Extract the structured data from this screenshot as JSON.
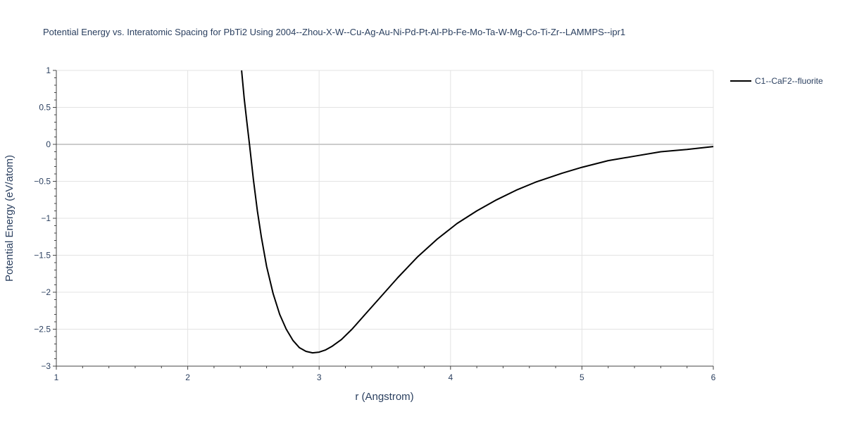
{
  "chart_data": {
    "type": "line",
    "title": "Potential Energy vs. Interatomic Spacing for PbTi2 Using 2004--Zhou-X-W--Cu-Ag-Au-Ni-Pd-Pt-Al-Pb-Fe-Mo-Ta-W-Mg-Co-Ti-Zr--LAMMPS--ipr1",
    "xlabel": "r (Angstrom)",
    "ylabel": "Potential Energy (eV/atom)",
    "xlim": [
      1,
      6
    ],
    "ylim": [
      -3,
      1
    ],
    "x_ticks": [
      1,
      2,
      3,
      4,
      5,
      6
    ],
    "x_tick_labels": [
      "1",
      "2",
      "3",
      "4",
      "5",
      "6"
    ],
    "y_ticks": [
      1,
      0.5,
      0,
      -0.5,
      -1,
      -1.5,
      -2,
      -2.5,
      -3
    ],
    "y_tick_labels": [
      "1",
      "0.5",
      "0",
      "−0.5",
      "−1",
      "−1.5",
      "−2",
      "−2.5",
      "−3"
    ],
    "grid": true,
    "legend_position": "top-right",
    "series": [
      {
        "name": "C1--CaF2--fluorite",
        "color": "#000000",
        "x": [
          2.41,
          2.43,
          2.45,
          2.47,
          2.5,
          2.53,
          2.56,
          2.6,
          2.65,
          2.7,
          2.75,
          2.8,
          2.85,
          2.9,
          2.95,
          3.0,
          3.05,
          3.1,
          3.17,
          3.25,
          3.35,
          3.45,
          3.6,
          3.75,
          3.9,
          4.05,
          4.2,
          4.35,
          4.5,
          4.65,
          4.85,
          5.0,
          5.2,
          5.4,
          5.6,
          5.8,
          6.0
        ],
        "y": [
          1.0,
          0.62,
          0.3,
          0.0,
          -0.48,
          -0.9,
          -1.25,
          -1.65,
          -2.02,
          -2.3,
          -2.5,
          -2.65,
          -2.75,
          -2.8,
          -2.82,
          -2.81,
          -2.78,
          -2.73,
          -2.64,
          -2.5,
          -2.3,
          -2.1,
          -1.8,
          -1.52,
          -1.28,
          -1.07,
          -0.9,
          -0.75,
          -0.62,
          -0.51,
          -0.39,
          -0.31,
          -0.22,
          -0.16,
          -0.1,
          -0.07,
          -0.03
        ]
      }
    ]
  }
}
